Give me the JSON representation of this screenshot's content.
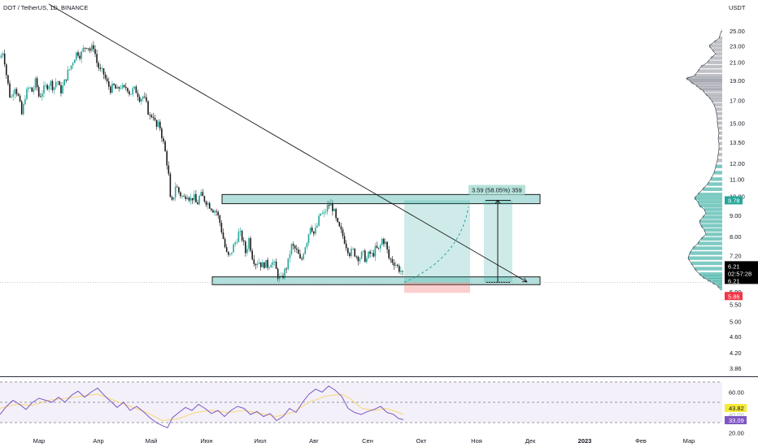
{
  "header": {
    "symbol": "DOT / TetherUS, 1D, BINANCE",
    "currency": "USDT"
  },
  "chart_data": {
    "type": "candlestick",
    "price_axis": {
      "scale": "log",
      "ticks": [
        "25.00",
        "23.00",
        "21.00",
        "19.00",
        "17.00",
        "15.00",
        "13.50",
        "12.00",
        "11.00",
        "10.00",
        "9.00",
        "8.00",
        "7.20",
        "6.40",
        "5.90",
        "5.50",
        "5.00",
        "4.60",
        "4.20",
        "3.86"
      ]
    },
    "time_axis": {
      "ticks": [
        "Мар",
        "Апр",
        "Май",
        "Июн",
        "Июл",
        "Авг",
        "Сен",
        "Окт",
        "Ноя",
        "Дек",
        "2023",
        "Фев",
        "Мар"
      ]
    },
    "price_path": [
      [
        0,
        21.5
      ],
      [
        4,
        22.4
      ],
      [
        8,
        19.5
      ],
      [
        13,
        17.0
      ],
      [
        18,
        18.5
      ],
      [
        23,
        17.2
      ],
      [
        27,
        15.6
      ],
      [
        31,
        17.5
      ],
      [
        36,
        18.3
      ],
      [
        40,
        17.8
      ],
      [
        44,
        19.0
      ],
      [
        48,
        17.3
      ],
      [
        53,
        18.0
      ],
      [
        57,
        18.4
      ],
      [
        62,
        18.8
      ],
      [
        66,
        18.2
      ],
      [
        70,
        19.2
      ],
      [
        74,
        17.8
      ],
      [
        78,
        18.5
      ],
      [
        83,
        19.8
      ],
      [
        87,
        20.5
      ],
      [
        91,
        21.5
      ],
      [
        95,
        22.3
      ],
      [
        99,
        21.8
      ],
      [
        103,
        22.7
      ],
      [
        107,
        23.2
      ],
      [
        111,
        22.4
      ],
      [
        115,
        23.0
      ],
      [
        119,
        21.0
      ],
      [
        123,
        20.0
      ],
      [
        127,
        19.8
      ],
      [
        131,
        18.8
      ],
      [
        136,
        18.1
      ],
      [
        140,
        18.4
      ],
      [
        144,
        17.9
      ],
      [
        148,
        18.5
      ],
      [
        152,
        18.0
      ],
      [
        156,
        18.4
      ],
      [
        160,
        17.6
      ],
      [
        164,
        18.1
      ],
      [
        168,
        17.9
      ],
      [
        172,
        17.2
      ],
      [
        176,
        17.4
      ],
      [
        180,
        16.6
      ],
      [
        184,
        15.5
      ],
      [
        188,
        15.8
      ],
      [
        192,
        14.6
      ],
      [
        196,
        14.9
      ],
      [
        200,
        13.7
      ],
      [
        204,
        12.5
      ],
      [
        207,
        11.4
      ],
      [
        210,
        9.4
      ],
      [
        213,
        9.9
      ],
      [
        216,
        10.7
      ],
      [
        219,
        10.3
      ],
      [
        222,
        10.1
      ],
      [
        226,
        9.9
      ],
      [
        230,
        10.2
      ],
      [
        234,
        9.8
      ],
      [
        238,
        10.0
      ],
      [
        242,
        9.5
      ],
      [
        246,
        10.1
      ],
      [
        250,
        9.9
      ],
      [
        254,
        9.7
      ],
      [
        258,
        9.5
      ],
      [
        262,
        9.3
      ],
      [
        266,
        9.2
      ],
      [
        270,
        8.7
      ],
      [
        274,
        8.0
      ],
      [
        278,
        7.3
      ],
      [
        282,
        7.1
      ],
      [
        286,
        7.5
      ],
      [
        290,
        7.8
      ],
      [
        294,
        8.2
      ],
      [
        298,
        7.9
      ],
      [
        302,
        7.3
      ],
      [
        306,
        7.9
      ],
      [
        310,
        7.2
      ],
      [
        314,
        6.9
      ],
      [
        318,
        7.0
      ],
      [
        322,
        6.8
      ],
      [
        326,
        6.9
      ],
      [
        330,
        6.8
      ],
      [
        334,
        7.0
      ],
      [
        338,
        6.8
      ],
      [
        342,
        6.4
      ],
      [
        346,
        6.3
      ],
      [
        350,
        6.6
      ],
      [
        354,
        6.9
      ],
      [
        358,
        7.6
      ],
      [
        362,
        7.5
      ],
      [
        366,
        7.3
      ],
      [
        370,
        6.9
      ],
      [
        374,
        7.5
      ],
      [
        378,
        7.9
      ],
      [
        382,
        8.6
      ],
      [
        386,
        8.1
      ],
      [
        390,
        8.5
      ],
      [
        394,
        9.1
      ],
      [
        398,
        9.0
      ],
      [
        402,
        9.4
      ],
      [
        406,
        9.6
      ],
      [
        410,
        9.3
      ],
      [
        414,
        8.6
      ],
      [
        418,
        8.3
      ],
      [
        422,
        8.0
      ],
      [
        426,
        7.6
      ],
      [
        430,
        7.3
      ],
      [
        434,
        7.4
      ],
      [
        438,
        7.2
      ],
      [
        442,
        7.1
      ],
      [
        446,
        7.3
      ],
      [
        450,
        7.0
      ],
      [
        454,
        7.3
      ],
      [
        458,
        7.2
      ],
      [
        462,
        7.5
      ],
      [
        466,
        7.4
      ],
      [
        470,
        7.9
      ],
      [
        474,
        7.7
      ],
      [
        478,
        7.1
      ],
      [
        482,
        7.0
      ],
      [
        486,
        6.9
      ],
      [
        490,
        6.7
      ],
      [
        494,
        6.6
      ],
      [
        497,
        6.21
      ]
    ],
    "rsi_path": [
      [
        0,
        38
      ],
      [
        8,
        46
      ],
      [
        16,
        52
      ],
      [
        24,
        48
      ],
      [
        32,
        43
      ],
      [
        40,
        50
      ],
      [
        48,
        54
      ],
      [
        56,
        52
      ],
      [
        64,
        50
      ],
      [
        72,
        55
      ],
      [
        80,
        50
      ],
      [
        88,
        57
      ],
      [
        96,
        61
      ],
      [
        104,
        55
      ],
      [
        112,
        60
      ],
      [
        120,
        64
      ],
      [
        128,
        57
      ],
      [
        136,
        51
      ],
      [
        144,
        45
      ],
      [
        152,
        50
      ],
      [
        160,
        42
      ],
      [
        168,
        46
      ],
      [
        176,
        41
      ],
      [
        184,
        35
      ],
      [
        192,
        30
      ],
      [
        200,
        27
      ],
      [
        206,
        25
      ],
      [
        212,
        35
      ],
      [
        220,
        40
      ],
      [
        228,
        45
      ],
      [
        236,
        42
      ],
      [
        244,
        48
      ],
      [
        252,
        44
      ],
      [
        260,
        39
      ],
      [
        268,
        42
      ],
      [
        276,
        36
      ],
      [
        284,
        42
      ],
      [
        292,
        46
      ],
      [
        300,
        44
      ],
      [
        308,
        38
      ],
      [
        316,
        41
      ],
      [
        324,
        36
      ],
      [
        332,
        39
      ],
      [
        340,
        32
      ],
      [
        348,
        36
      ],
      [
        356,
        44
      ],
      [
        364,
        40
      ],
      [
        372,
        50
      ],
      [
        380,
        58
      ],
      [
        388,
        63
      ],
      [
        396,
        60
      ],
      [
        404,
        66
      ],
      [
        412,
        62
      ],
      [
        420,
        56
      ],
      [
        428,
        44
      ],
      [
        436,
        40
      ],
      [
        444,
        38
      ],
      [
        452,
        41
      ],
      [
        460,
        43
      ],
      [
        468,
        46
      ],
      [
        476,
        40
      ],
      [
        484,
        38
      ],
      [
        490,
        34
      ],
      [
        496,
        33
      ]
    ],
    "rsi_ma_path": [
      [
        0,
        44
      ],
      [
        20,
        48
      ],
      [
        40,
        47
      ],
      [
        60,
        52
      ],
      [
        80,
        54
      ],
      [
        100,
        56
      ],
      [
        120,
        58
      ],
      [
        140,
        52
      ],
      [
        160,
        46
      ],
      [
        180,
        40
      ],
      [
        200,
        32
      ],
      [
        220,
        34
      ],
      [
        240,
        40
      ],
      [
        260,
        42
      ],
      [
        280,
        40
      ],
      [
        300,
        42
      ],
      [
        320,
        39
      ],
      [
        340,
        36
      ],
      [
        360,
        40
      ],
      [
        380,
        50
      ],
      [
        400,
        56
      ],
      [
        420,
        58
      ],
      [
        430,
        54
      ],
      [
        445,
        44
      ],
      [
        460,
        42
      ],
      [
        475,
        44
      ],
      [
        490,
        40
      ],
      [
        496,
        38
      ]
    ],
    "rsi": {
      "ticks": [
        "60.00",
        "40.00",
        "20.00"
      ],
      "labels": {
        "rsi": "33.09",
        "ma": "43.82",
        "hidden": "40.00"
      }
    },
    "price_labels": {
      "target": "9.78",
      "current": "6.21",
      "countdown": "02:57:28",
      "current2": "6.21",
      "stop": "5.86"
    },
    "measure_label": "3.59 (58.05%) 359",
    "rectangles": {
      "upper": {
        "low": 9.6,
        "high": 10.1
      },
      "lower": {
        "low": 6.13,
        "high": 6.4
      }
    },
    "trendline": {
      "from": [
        60,
        29.0
      ],
      "to": [
        648,
        6.22
      ]
    },
    "position": {
      "entry": 6.21,
      "target": 9.78,
      "stop": 5.86
    },
    "volume_profile": [
      [
        25.0,
        1
      ],
      [
        24.0,
        4
      ],
      [
        23.5,
        10
      ],
      [
        23.0,
        16
      ],
      [
        22.5,
        12
      ],
      [
        22.0,
        8
      ],
      [
        21.5,
        14
      ],
      [
        21.0,
        18
      ],
      [
        20.5,
        26
      ],
      [
        20.0,
        30
      ],
      [
        19.5,
        34
      ],
      [
        19.2,
        44
      ],
      [
        19.0,
        40
      ],
      [
        18.8,
        38
      ],
      [
        18.5,
        32
      ],
      [
        18.2,
        28
      ],
      [
        18.0,
        24
      ],
      [
        17.6,
        20
      ],
      [
        17.3,
        16
      ],
      [
        17.0,
        13
      ],
      [
        16.6,
        10
      ],
      [
        16.2,
        8
      ],
      [
        15.8,
        7
      ],
      [
        15.4,
        6
      ],
      [
        15.0,
        6
      ],
      [
        14.6,
        5
      ],
      [
        14.2,
        4
      ],
      [
        13.8,
        5
      ],
      [
        13.4,
        4
      ],
      [
        13.0,
        4
      ],
      [
        12.6,
        5
      ],
      [
        12.2,
        6
      ],
      [
        11.8,
        8
      ],
      [
        11.4,
        10
      ],
      [
        11.0,
        14
      ],
      [
        10.7,
        18
      ],
      [
        10.4,
        24
      ],
      [
        10.1,
        30
      ],
      [
        9.9,
        34
      ],
      [
        9.7,
        30
      ],
      [
        9.5,
        28
      ],
      [
        9.3,
        22
      ],
      [
        9.1,
        20
      ],
      [
        8.9,
        24
      ],
      [
        8.7,
        28
      ],
      [
        8.5,
        26
      ],
      [
        8.3,
        22
      ],
      [
        8.1,
        20
      ],
      [
        7.9,
        26
      ],
      [
        7.7,
        30
      ],
      [
        7.5,
        36
      ],
      [
        7.3,
        40
      ],
      [
        7.1,
        42
      ],
      [
        6.9,
        38
      ],
      [
        6.7,
        34
      ],
      [
        6.5,
        28
      ],
      [
        6.4,
        24
      ],
      [
        6.3,
        18
      ],
      [
        6.2,
        12
      ],
      [
        6.1,
        6
      ],
      [
        6.0,
        3
      ]
    ]
  }
}
